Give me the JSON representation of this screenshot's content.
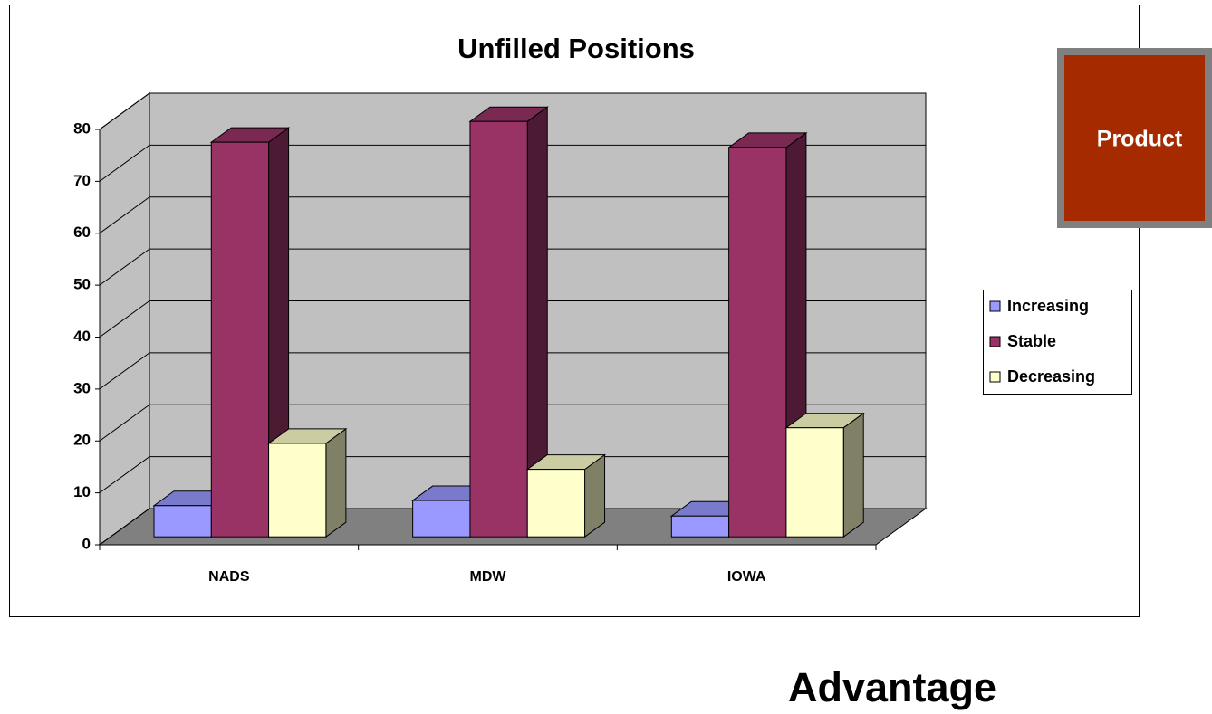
{
  "chart_data": {
    "type": "bar3d",
    "title": "Unfilled Positions",
    "categories": [
      "NADS",
      "MDW",
      "IOWA"
    ],
    "series": [
      {
        "name": "Increasing",
        "color": "#9999ff",
        "values": [
          6,
          7,
          4
        ]
      },
      {
        "name": "Stable",
        "color": "#993366",
        "values": [
          76,
          80,
          75
        ]
      },
      {
        "name": "Decreasing",
        "color": "#ffffcc",
        "values": [
          18,
          13,
          21
        ]
      }
    ],
    "ylim": [
      0,
      80
    ],
    "yticks": [
      0,
      10,
      20,
      30,
      40,
      50,
      60,
      70,
      80
    ],
    "grid": true,
    "legend": "right"
  },
  "badge": "Product",
  "caption": "Advantage"
}
